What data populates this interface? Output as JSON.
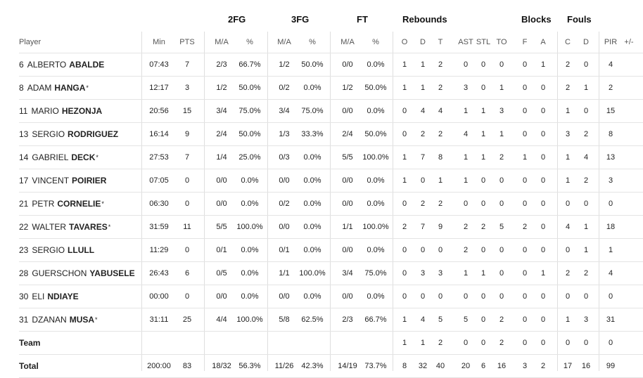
{
  "groups": {
    "fg2": "2FG",
    "fg3": "3FG",
    "ft": "FT",
    "rebounds": "Rebounds",
    "blocks": "Blocks",
    "fouls": "Fouls"
  },
  "columns": {
    "player": "Player",
    "min": "Min",
    "pts": "PTS",
    "fg2_ma": "M/A",
    "fg2_pct": "%",
    "fg3_ma": "M/A",
    "fg3_pct": "%",
    "ft_ma": "M/A",
    "ft_pct": "%",
    "reb_o": "O",
    "reb_d": "D",
    "reb_t": "T",
    "ast": "AST",
    "stl": "STL",
    "to": "TO",
    "blk_f": "F",
    "blk_a": "A",
    "fouls_c": "C",
    "fouls_d": "D",
    "pir": "PIR",
    "pm": "+/-"
  },
  "players": [
    {
      "num": "6",
      "first": "ALBERTO",
      "last": "ABALDE",
      "star": "",
      "min": "07:43",
      "pts": "7",
      "fg2_ma": "2/3",
      "fg2_pct": "66.7%",
      "fg3_ma": "1/2",
      "fg3_pct": "50.0%",
      "ft_ma": "0/0",
      "ft_pct": "0.0%",
      "reb_o": "1",
      "reb_d": "1",
      "reb_t": "2",
      "ast": "0",
      "stl": "0",
      "to": "0",
      "blk_f": "0",
      "blk_a": "1",
      "fouls_c": "2",
      "fouls_d": "0",
      "pir": "4",
      "pm": ""
    },
    {
      "num": "8",
      "first": "ADAM",
      "last": "HANGA",
      "star": "*",
      "min": "12:17",
      "pts": "3",
      "fg2_ma": "1/2",
      "fg2_pct": "50.0%",
      "fg3_ma": "0/2",
      "fg3_pct": "0.0%",
      "ft_ma": "1/2",
      "ft_pct": "50.0%",
      "reb_o": "1",
      "reb_d": "1",
      "reb_t": "2",
      "ast": "3",
      "stl": "0",
      "to": "1",
      "blk_f": "0",
      "blk_a": "0",
      "fouls_c": "2",
      "fouls_d": "1",
      "pir": "2",
      "pm": ""
    },
    {
      "num": "11",
      "first": "MARIO",
      "last": "HEZONJA",
      "star": "",
      "min": "20:56",
      "pts": "15",
      "fg2_ma": "3/4",
      "fg2_pct": "75.0%",
      "fg3_ma": "3/4",
      "fg3_pct": "75.0%",
      "ft_ma": "0/0",
      "ft_pct": "0.0%",
      "reb_o": "0",
      "reb_d": "4",
      "reb_t": "4",
      "ast": "1",
      "stl": "1",
      "to": "3",
      "blk_f": "0",
      "blk_a": "0",
      "fouls_c": "1",
      "fouls_d": "0",
      "pir": "15",
      "pm": ""
    },
    {
      "num": "13",
      "first": "SERGIO",
      "last": "RODRIGUEZ",
      "star": "",
      "min": "16:14",
      "pts": "9",
      "fg2_ma": "2/4",
      "fg2_pct": "50.0%",
      "fg3_ma": "1/3",
      "fg3_pct": "33.3%",
      "ft_ma": "2/4",
      "ft_pct": "50.0%",
      "reb_o": "0",
      "reb_d": "2",
      "reb_t": "2",
      "ast": "4",
      "stl": "1",
      "to": "1",
      "blk_f": "0",
      "blk_a": "0",
      "fouls_c": "3",
      "fouls_d": "2",
      "pir": "8",
      "pm": ""
    },
    {
      "num": "14",
      "first": "GABRIEL",
      "last": "DECK",
      "star": "*",
      "min": "27:53",
      "pts": "7",
      "fg2_ma": "1/4",
      "fg2_pct": "25.0%",
      "fg3_ma": "0/3",
      "fg3_pct": "0.0%",
      "ft_ma": "5/5",
      "ft_pct": "100.0%",
      "reb_o": "1",
      "reb_d": "7",
      "reb_t": "8",
      "ast": "1",
      "stl": "1",
      "to": "2",
      "blk_f": "1",
      "blk_a": "0",
      "fouls_c": "1",
      "fouls_d": "4",
      "pir": "13",
      "pm": ""
    },
    {
      "num": "17",
      "first": "VINCENT",
      "last": "POIRIER",
      "star": "",
      "min": "07:05",
      "pts": "0",
      "fg2_ma": "0/0",
      "fg2_pct": "0.0%",
      "fg3_ma": "0/0",
      "fg3_pct": "0.0%",
      "ft_ma": "0/0",
      "ft_pct": "0.0%",
      "reb_o": "1",
      "reb_d": "0",
      "reb_t": "1",
      "ast": "1",
      "stl": "0",
      "to": "0",
      "blk_f": "0",
      "blk_a": "0",
      "fouls_c": "1",
      "fouls_d": "2",
      "pir": "3",
      "pm": ""
    },
    {
      "num": "21",
      "first": "PETR",
      "last": "CORNELIE",
      "star": "*",
      "min": "06:30",
      "pts": "0",
      "fg2_ma": "0/0",
      "fg2_pct": "0.0%",
      "fg3_ma": "0/2",
      "fg3_pct": "0.0%",
      "ft_ma": "0/0",
      "ft_pct": "0.0%",
      "reb_o": "0",
      "reb_d": "2",
      "reb_t": "2",
      "ast": "0",
      "stl": "0",
      "to": "0",
      "blk_f": "0",
      "blk_a": "0",
      "fouls_c": "0",
      "fouls_d": "0",
      "pir": "0",
      "pm": ""
    },
    {
      "num": "22",
      "first": "WALTER",
      "last": "TAVARES",
      "star": "*",
      "min": "31:59",
      "pts": "11",
      "fg2_ma": "5/5",
      "fg2_pct": "100.0%",
      "fg3_ma": "0/0",
      "fg3_pct": "0.0%",
      "ft_ma": "1/1",
      "ft_pct": "100.0%",
      "reb_o": "2",
      "reb_d": "7",
      "reb_t": "9",
      "ast": "2",
      "stl": "2",
      "to": "5",
      "blk_f": "2",
      "blk_a": "0",
      "fouls_c": "4",
      "fouls_d": "1",
      "pir": "18",
      "pm": ""
    },
    {
      "num": "23",
      "first": "SERGIO",
      "last": "LLULL",
      "star": "",
      "min": "11:29",
      "pts": "0",
      "fg2_ma": "0/1",
      "fg2_pct": "0.0%",
      "fg3_ma": "0/1",
      "fg3_pct": "0.0%",
      "ft_ma": "0/0",
      "ft_pct": "0.0%",
      "reb_o": "0",
      "reb_d": "0",
      "reb_t": "0",
      "ast": "2",
      "stl": "0",
      "to": "0",
      "blk_f": "0",
      "blk_a": "0",
      "fouls_c": "0",
      "fouls_d": "1",
      "pir": "1",
      "pm": ""
    },
    {
      "num": "28",
      "first": "GUERSCHON",
      "last": "YABUSELE",
      "star": "",
      "min": "26:43",
      "pts": "6",
      "fg2_ma": "0/5",
      "fg2_pct": "0.0%",
      "fg3_ma": "1/1",
      "fg3_pct": "100.0%",
      "ft_ma": "3/4",
      "ft_pct": "75.0%",
      "reb_o": "0",
      "reb_d": "3",
      "reb_t": "3",
      "ast": "1",
      "stl": "1",
      "to": "0",
      "blk_f": "0",
      "blk_a": "1",
      "fouls_c": "2",
      "fouls_d": "2",
      "pir": "4",
      "pm": ""
    },
    {
      "num": "30",
      "first": "ELI",
      "last": "NDIAYE",
      "star": "",
      "min": "00:00",
      "pts": "0",
      "fg2_ma": "0/0",
      "fg2_pct": "0.0%",
      "fg3_ma": "0/0",
      "fg3_pct": "0.0%",
      "ft_ma": "0/0",
      "ft_pct": "0.0%",
      "reb_o": "0",
      "reb_d": "0",
      "reb_t": "0",
      "ast": "0",
      "stl": "0",
      "to": "0",
      "blk_f": "0",
      "blk_a": "0",
      "fouls_c": "0",
      "fouls_d": "0",
      "pir": "0",
      "pm": ""
    },
    {
      "num": "31",
      "first": "DZANAN",
      "last": "MUSA",
      "star": "*",
      "min": "31:11",
      "pts": "25",
      "fg2_ma": "4/4",
      "fg2_pct": "100.0%",
      "fg3_ma": "5/8",
      "fg3_pct": "62.5%",
      "ft_ma": "2/3",
      "ft_pct": "66.7%",
      "reb_o": "1",
      "reb_d": "4",
      "reb_t": "5",
      "ast": "5",
      "stl": "0",
      "to": "2",
      "blk_f": "0",
      "blk_a": "0",
      "fouls_c": "1",
      "fouls_d": "3",
      "pir": "31",
      "pm": ""
    }
  ],
  "team": {
    "label": "Team",
    "min": "",
    "pts": "",
    "fg2_ma": "",
    "fg2_pct": "",
    "fg3_ma": "",
    "fg3_pct": "",
    "ft_ma": "",
    "ft_pct": "",
    "reb_o": "1",
    "reb_d": "1",
    "reb_t": "2",
    "ast": "0",
    "stl": "0",
    "to": "2",
    "blk_f": "0",
    "blk_a": "0",
    "fouls_c": "0",
    "fouls_d": "0",
    "pir": "0",
    "pm": ""
  },
  "total": {
    "label": "Total",
    "min": "200:00",
    "pts": "83",
    "fg2_ma": "18/32",
    "fg2_pct": "56.3%",
    "fg3_ma": "11/26",
    "fg3_pct": "42.3%",
    "ft_ma": "14/19",
    "ft_pct": "73.7%",
    "reb_o": "8",
    "reb_d": "32",
    "reb_t": "40",
    "ast": "20",
    "stl": "6",
    "to": "16",
    "blk_f": "3",
    "blk_a": "2",
    "fouls_c": "17",
    "fouls_d": "16",
    "pir": "99",
    "pm": ""
  }
}
